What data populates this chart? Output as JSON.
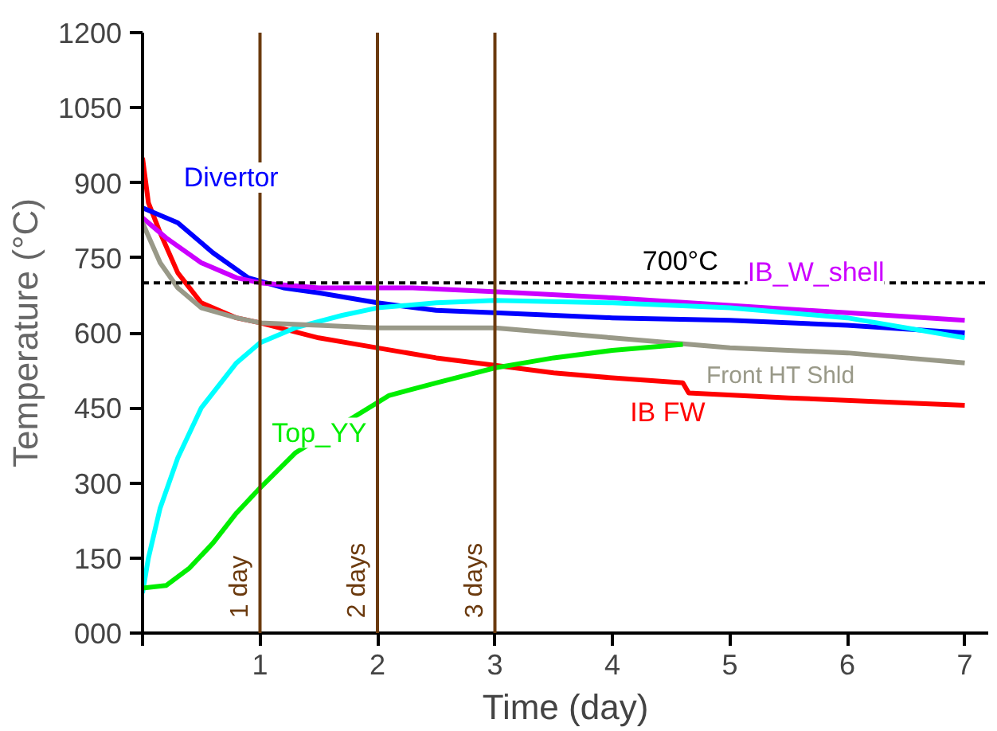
{
  "chart_data": {
    "type": "line",
    "xlabel": "Time (day)",
    "ylabel": "Temperature (°C)",
    "xlim": [
      0,
      7.2
    ],
    "ylim": [
      0,
      1200
    ],
    "xticks": [
      {
        "value": 0,
        "label": null
      },
      1,
      2,
      3,
      4,
      5,
      6,
      7
    ],
    "yticks": [
      {
        "value": 0,
        "label": "000"
      },
      150,
      300,
      450,
      600,
      750,
      900,
      1050,
      1200
    ],
    "grid": false,
    "series": [
      {
        "name": "IB FW",
        "color": "#ff0000",
        "x": [
          0,
          0.05,
          0.15,
          0.3,
          0.5,
          0.8,
          1,
          1.5,
          2,
          2.5,
          3,
          3.5,
          4,
          4.6,
          4.65,
          5.5,
          6.5,
          7
        ],
        "values": [
          950,
          860,
          800,
          720,
          660,
          630,
          620,
          590,
          570,
          550,
          535,
          520,
          510,
          500,
          480,
          470,
          460,
          455
        ]
      },
      {
        "name": "Divertor",
        "color": "#0000ff",
        "x": [
          0,
          0.3,
          0.6,
          0.9,
          1.2,
          1.5,
          2,
          2.5,
          3,
          4,
          5,
          6,
          7
        ],
        "values": [
          850,
          820,
          760,
          710,
          690,
          680,
          660,
          645,
          640,
          630,
          625,
          615,
          600
        ]
      },
      {
        "name": "IB_W_shell",
        "color": "#cc00ff",
        "x": [
          0,
          0.2,
          0.5,
          0.8,
          1,
          1.5,
          2.3,
          3.2,
          4,
          5,
          6,
          7
        ],
        "values": [
          830,
          790,
          740,
          710,
          700,
          690,
          690,
          680,
          670,
          655,
          640,
          625
        ]
      },
      {
        "name": null,
        "color": "#00ffff",
        "x": [
          0,
          0.05,
          0.15,
          0.3,
          0.5,
          0.8,
          1,
          1.3,
          1.7,
          2,
          2.5,
          3,
          4,
          5,
          6,
          7
        ],
        "values": [
          80,
          150,
          250,
          350,
          450,
          540,
          580,
          610,
          635,
          650,
          660,
          665,
          660,
          650,
          630,
          590
        ]
      },
      {
        "name": "Front HT Shld",
        "color": "#999988",
        "x": [
          0,
          0.15,
          0.3,
          0.5,
          0.8,
          1,
          1.5,
          2,
          3,
          4,
          4.5,
          5,
          6,
          7
        ],
        "values": [
          820,
          740,
          690,
          650,
          630,
          620,
          615,
          610,
          610,
          590,
          580,
          570,
          560,
          540
        ]
      },
      {
        "name": "Top_YY",
        "color": "#00ee00",
        "x": [
          0,
          0.2,
          0.4,
          0.6,
          0.8,
          1,
          1.3,
          2.1,
          2.5,
          3,
          3.5,
          4,
          4.6
        ],
        "values": [
          90,
          95,
          130,
          180,
          240,
          290,
          360,
          475,
          500,
          530,
          550,
          565,
          577
        ]
      }
    ],
    "ref_lines": [
      {
        "axis": "y",
        "value": 700,
        "label": "700°C",
        "color": "#000000",
        "line_style": "dashed"
      },
      {
        "axis": "x",
        "value": 1,
        "label": "1 day",
        "color": "#6b3a0e",
        "line_style": "solid"
      },
      {
        "axis": "x",
        "value": 2,
        "label": "2 days",
        "color": "#6b3a0e",
        "line_style": "solid"
      },
      {
        "axis": "x",
        "value": 3,
        "label": "3 days",
        "color": "#6b3a0e",
        "line_style": "solid"
      }
    ]
  }
}
